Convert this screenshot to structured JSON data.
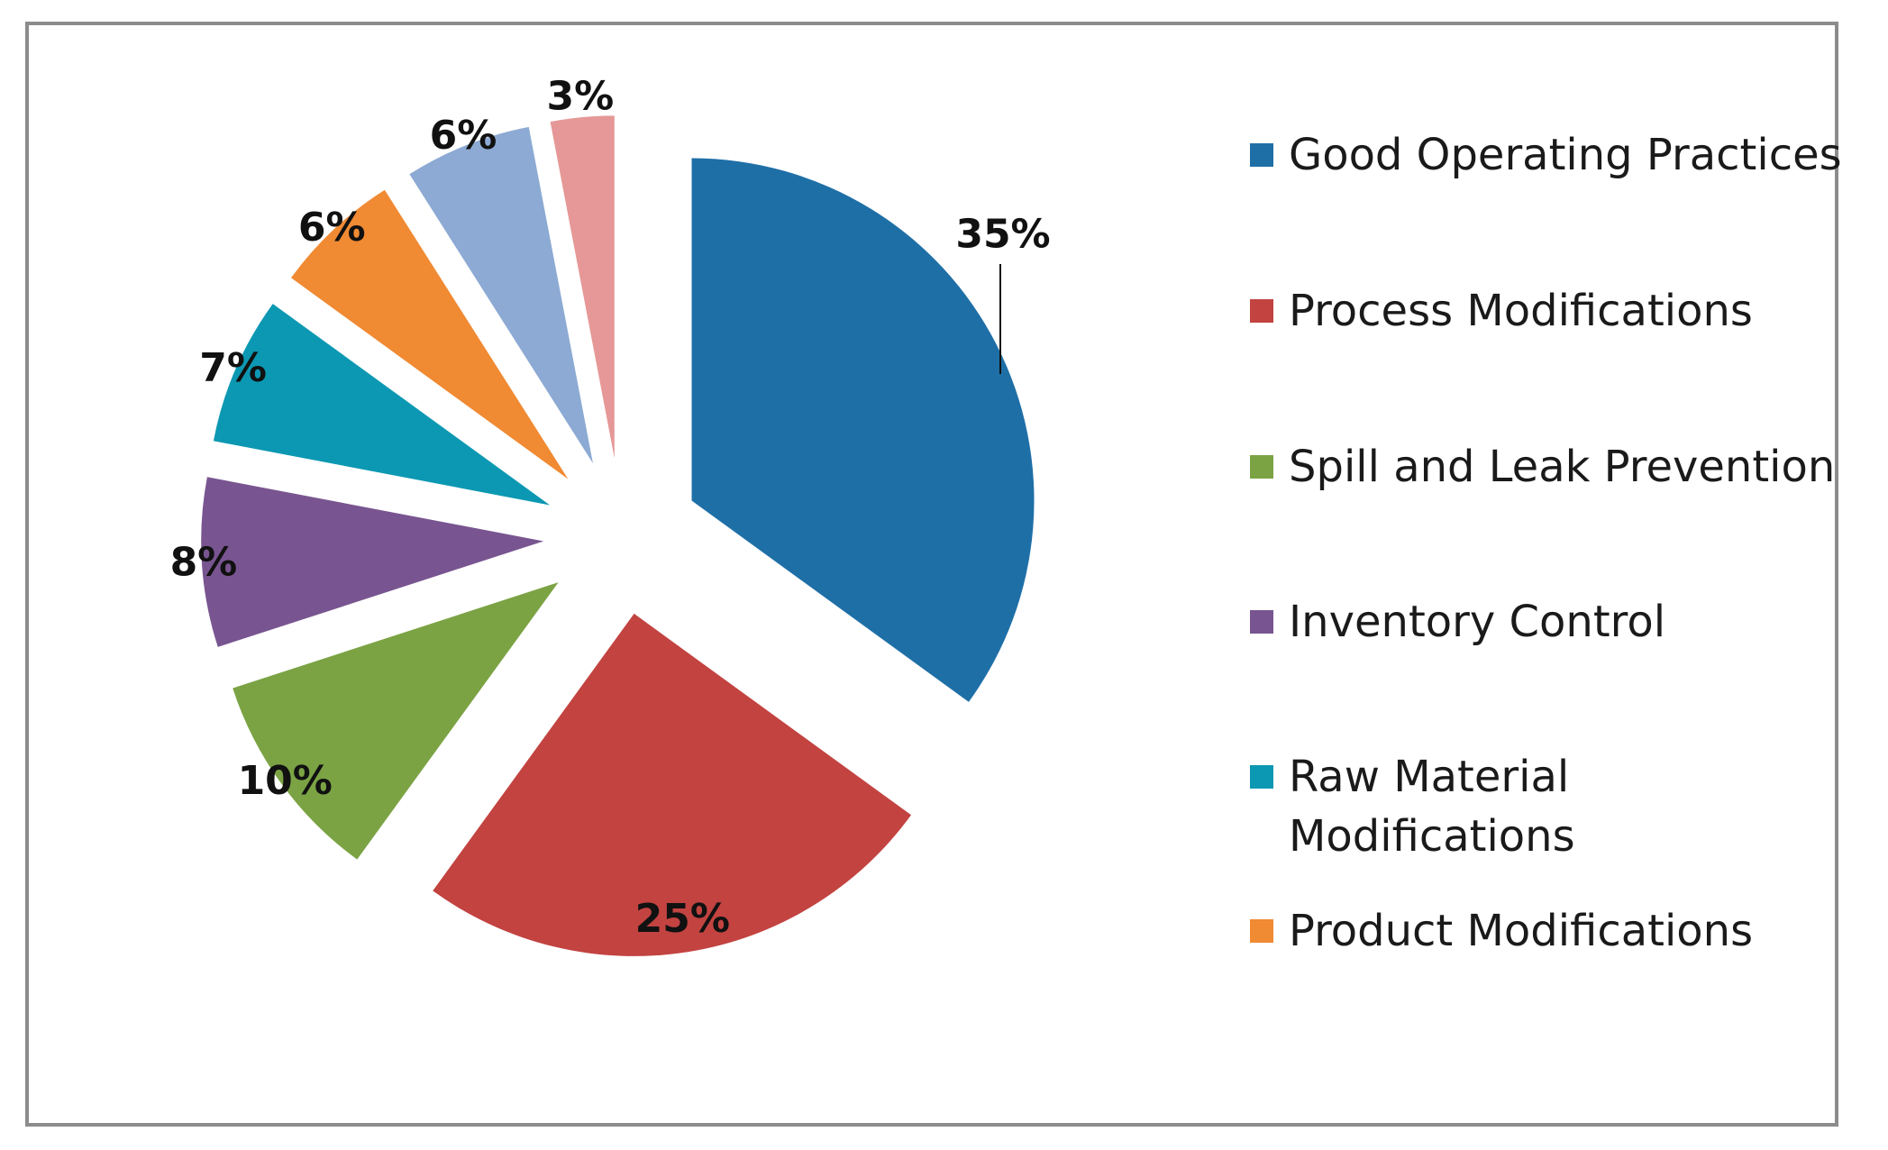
{
  "chart_data": {
    "type": "pie",
    "exploded": true,
    "title": "",
    "slices": [
      {
        "name": "Good Operating Practices",
        "value": 35,
        "label": "35%",
        "color": "#1f6fa7"
      },
      {
        "name": "Process Modifications",
        "value": 25,
        "label": "25%",
        "color": "#c24340"
      },
      {
        "name": "Spill and Leak Prevention",
        "value": 10,
        "label": "10%",
        "color": "#7ba344"
      },
      {
        "name": "Inventory Control",
        "value": 8,
        "label": "8%",
        "color": "#785590"
      },
      {
        "name": "Raw Material Modifications",
        "value": 7,
        "label": "7%",
        "color": "#0c98b2"
      },
      {
        "name": "Product Modifications",
        "value": 6,
        "label": "6%",
        "color": "#f08a33"
      },
      {
        "name": "",
        "value": 6,
        "label": "6%",
        "color": "#8caad3"
      },
      {
        "name": "",
        "value": 3,
        "label": "3%",
        "color": "#e59897"
      }
    ],
    "legend": {
      "position": "right",
      "entries": [
        {
          "lines": [
            "Good Operating Practices"
          ],
          "color": "#1f6fa7"
        },
        {
          "lines": [
            "Process Modifications"
          ],
          "color": "#c24340"
        },
        {
          "lines": [
            "Spill and Leak Prevention"
          ],
          "color": "#7ba344"
        },
        {
          "lines": [
            "Inventory Control"
          ],
          "color": "#785590"
        },
        {
          "lines": [
            "Raw Material",
            "Modifications"
          ],
          "color": "#0c98b2"
        },
        {
          "lines": [
            "Product Modifications"
          ],
          "color": "#f08a33"
        }
      ]
    }
  }
}
